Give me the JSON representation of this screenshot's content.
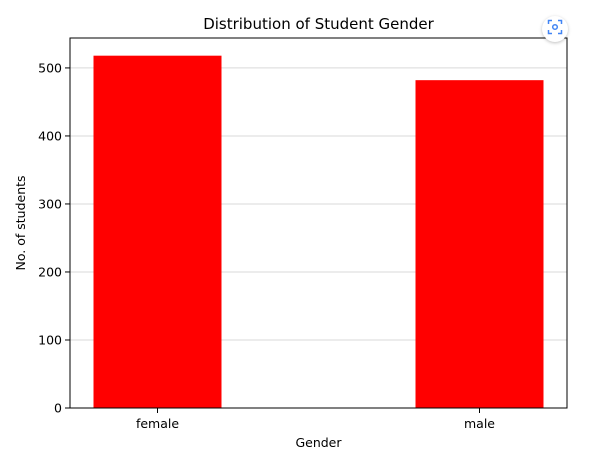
{
  "chart_data": {
    "type": "bar",
    "title": "Distribution of Student Gender",
    "xlabel": "Gender",
    "ylabel": "No. of students",
    "categories": [
      "female",
      "male"
    ],
    "values": [
      518,
      482
    ],
    "ylim": [
      0,
      544
    ],
    "yticks": [
      0,
      100,
      200,
      300,
      400,
      500
    ],
    "grid": "horizontal",
    "colors": {
      "bar": "#ff0000",
      "grid": "#d9d9d9",
      "axis": "#000000"
    }
  },
  "toolbar": {
    "expand_icon": "focus-frame-icon",
    "accent": "#4285f4"
  }
}
